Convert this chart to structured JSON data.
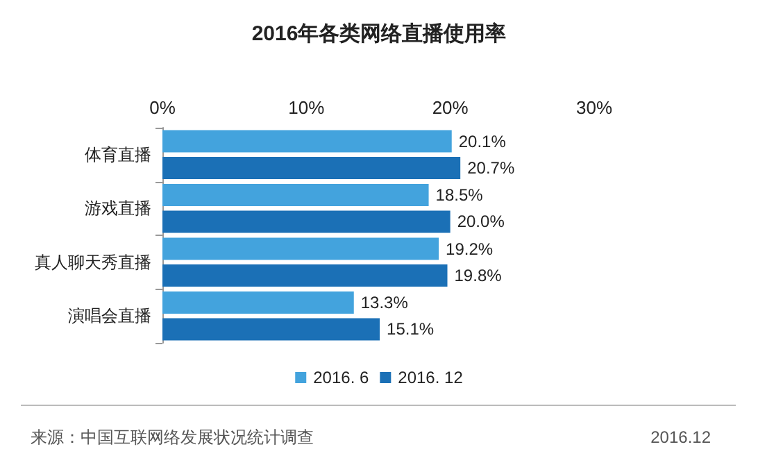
{
  "chart_data": {
    "type": "bar",
    "orientation": "horizontal",
    "title": "2016年各类网络直播使用率",
    "categories": [
      "体育直播",
      "游戏直播",
      "真人聊天秀直播",
      "演唱会直播"
    ],
    "series": [
      {
        "name": "2016. 6",
        "color": "#43a3dd",
        "values": [
          20.1,
          18.5,
          19.2,
          13.3
        ],
        "value_labels": [
          "20.1%",
          "18.5%",
          "19.2%",
          "13.3%"
        ]
      },
      {
        "name": "2016. 12",
        "color": "#1b70b6",
        "values": [
          20.7,
          20.0,
          19.8,
          15.1
        ],
        "value_labels": [
          "20.7%",
          "20.0%",
          "19.8%",
          "15.1%"
        ]
      }
    ],
    "xlim": [
      0,
      30
    ],
    "xticks": [
      {
        "value": 0,
        "label": "0%"
      },
      {
        "value": 10,
        "label": "10%"
      },
      {
        "value": 20,
        "label": "20%"
      },
      {
        "value": 30,
        "label": "30%"
      }
    ],
    "grid": false,
    "legend": "bottom",
    "annotations": [
      "来源：中国互联网络发展状况统计调查",
      "2016.12"
    ]
  }
}
